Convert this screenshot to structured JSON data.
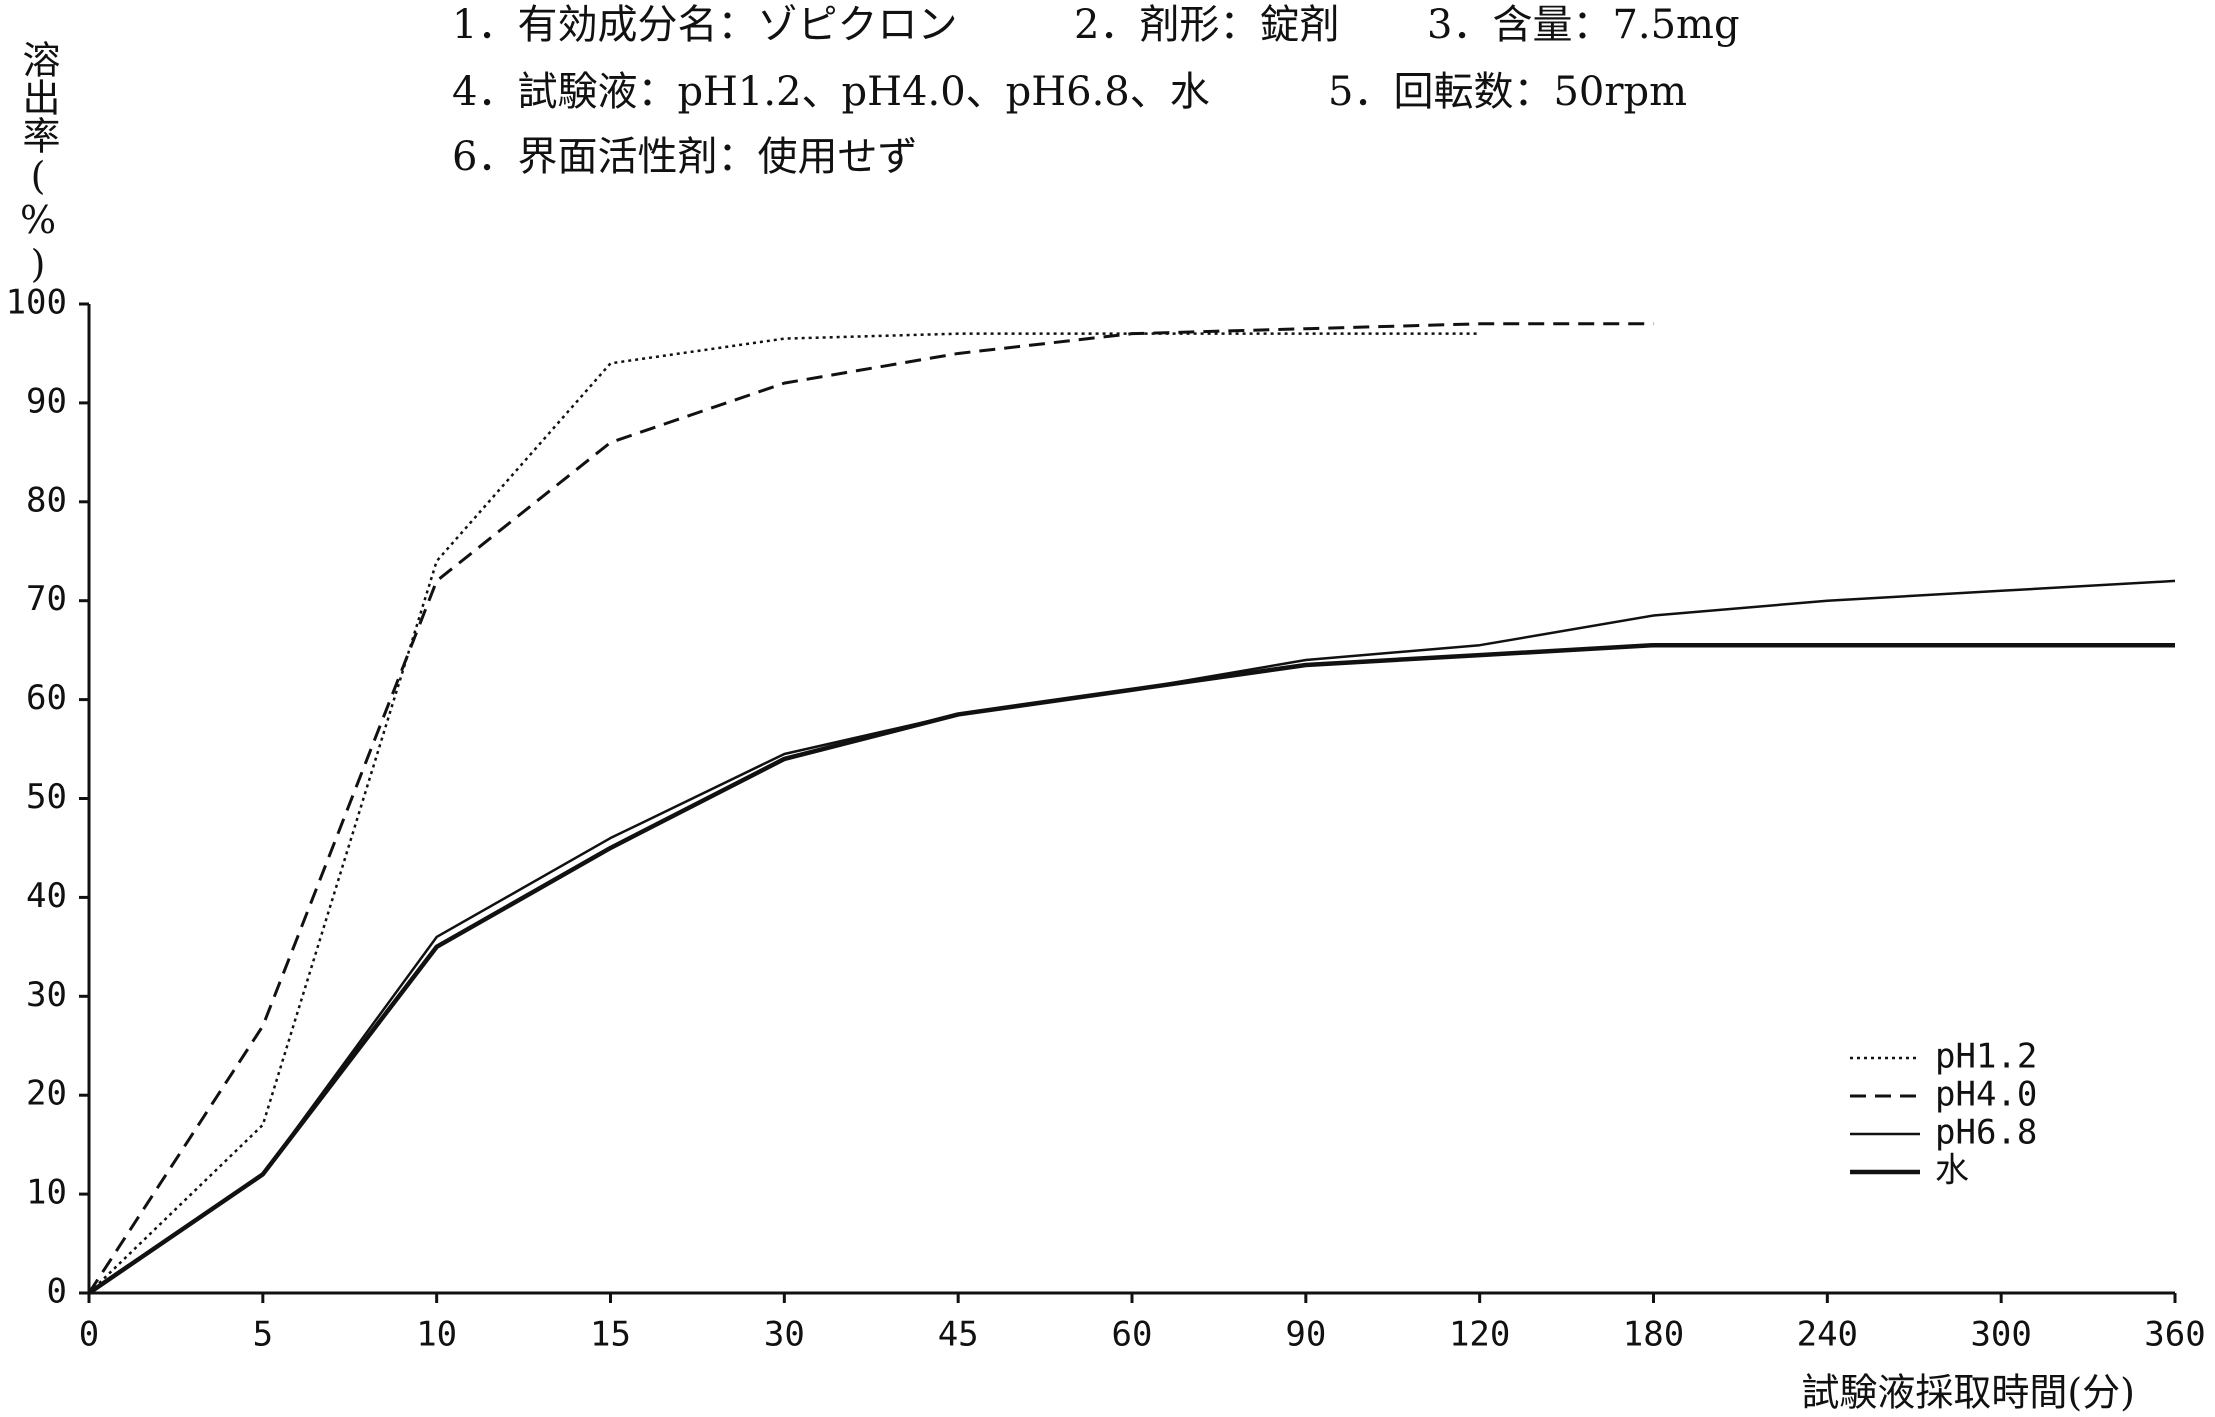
{
  "chart_data": {
    "type": "line",
    "subtitle_lines": [
      [
        "1．有効成分名：ゾピクロン",
        "2．剤形：錠剤",
        "3．含量：7.5mg"
      ],
      [
        "4．試験液：pH1.2、pH4.0、pH6.8、水",
        "5．回転数：50rpm"
      ],
      [
        "6．界面活性剤：使用せず"
      ]
    ],
    "y_label": "溶出率(%)",
    "x_label": "試験液採取時間(分)",
    "categories": [
      "0",
      "5",
      "10",
      "15",
      "30",
      "45",
      "60",
      "90",
      "120",
      "180",
      "240",
      "300",
      "360"
    ],
    "series": [
      {
        "name": "pH1.2",
        "color": "#111111",
        "style": "dotted",
        "values": [
          0,
          17,
          74,
          94,
          96.5,
          97,
          97,
          97,
          97,
          null,
          null,
          null,
          null
        ]
      },
      {
        "name": "pH4.0",
        "color": "#111111",
        "style": "dashed",
        "values": [
          0,
          27,
          72,
          86,
          92,
          95,
          97,
          97.5,
          98,
          98,
          null,
          null,
          null
        ]
      },
      {
        "name": "pH6.8",
        "color": "#111111",
        "style": "solid",
        "values": [
          0,
          12,
          36,
          46,
          54.5,
          58.5,
          61,
          64,
          65.5,
          68.5,
          70,
          71,
          72
        ]
      },
      {
        "name": "水",
        "color": "#111111",
        "style": "bold",
        "values": [
          0,
          12,
          35,
          45,
          54,
          58.5,
          61,
          63.5,
          64.5,
          65.5,
          65.5,
          65.5,
          65.5
        ]
      }
    ],
    "ylim": [
      0,
      100
    ],
    "yticks": [
      0,
      10,
      20,
      30,
      40,
      50,
      60,
      70,
      80,
      90,
      100
    ],
    "grid": false,
    "legend": "lower right"
  }
}
